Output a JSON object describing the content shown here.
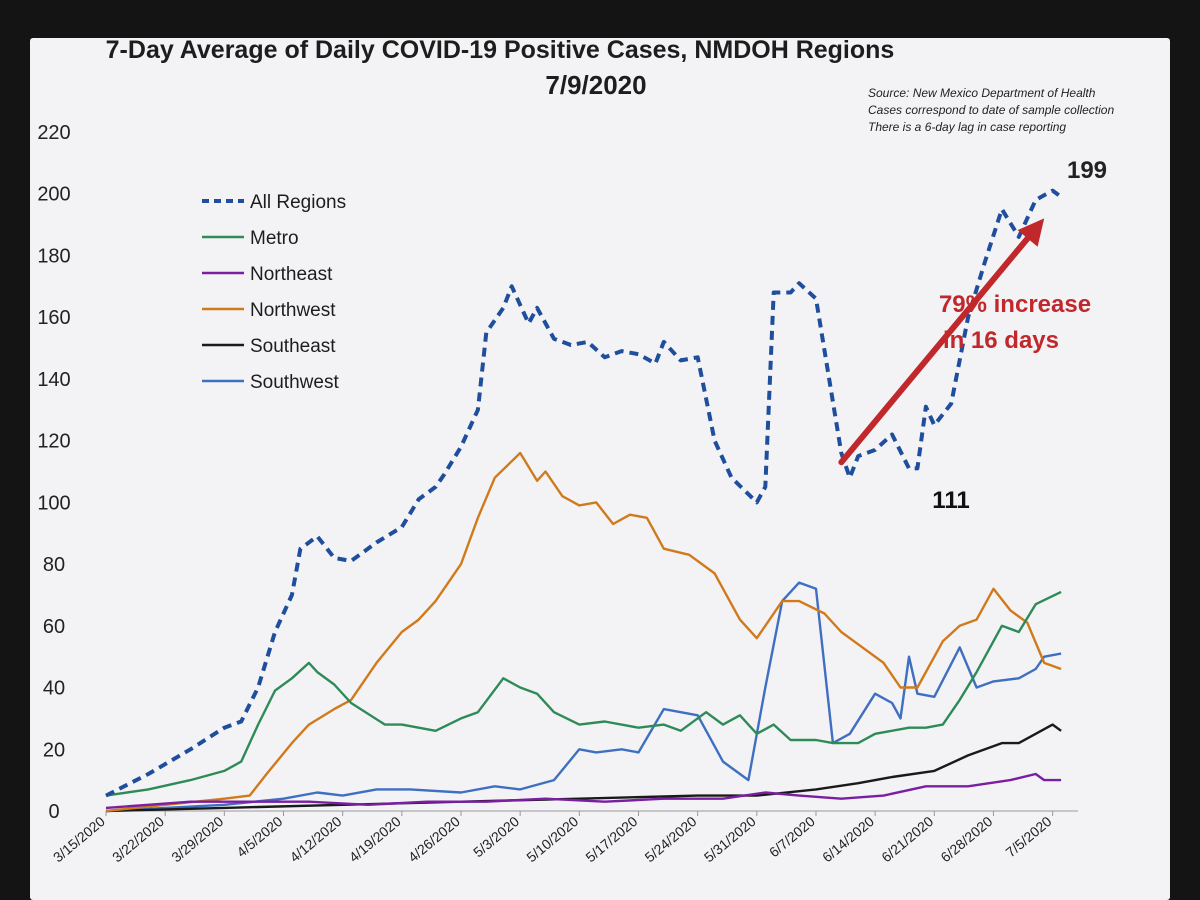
{
  "chart_data": {
    "type": "line",
    "title": "7-Day Average of Daily COVID-19 Positive Cases, NMDOH Regions",
    "subtitle": "7/9/2020",
    "source_notes": [
      "Source: New Mexico Department of Health",
      "Cases correspond to date of sample collection",
      "There is a 6-day lag in case reporting"
    ],
    "xlabel": "",
    "ylabel": "",
    "ylim": [
      0,
      220
    ],
    "yticks": [
      0,
      20,
      40,
      60,
      80,
      100,
      120,
      140,
      160,
      180,
      200,
      220
    ],
    "xlim": [
      "3/15/2020",
      "7/8/2020"
    ],
    "xtick_labels": [
      "3/15/2020",
      "3/22/2020",
      "3/29/2020",
      "4/5/2020",
      "4/12/2020",
      "4/19/2020",
      "4/26/2020",
      "5/3/2020",
      "5/10/2020",
      "5/17/2020",
      "5/24/2020",
      "5/31/2020",
      "6/7/2020",
      "6/14/2020",
      "6/21/2020",
      "6/28/2020",
      "7/5/2020"
    ],
    "legend_position": "upper-left",
    "grid": false,
    "series": [
      {
        "name": "All Regions",
        "color": "#1f4e9c",
        "dash": true,
        "points": [
          [
            "3/15/2020",
            5
          ],
          [
            "3/20/2020",
            12
          ],
          [
            "3/25/2020",
            20
          ],
          [
            "3/29/2020",
            27
          ],
          [
            "3/31/2020",
            29
          ],
          [
            "4/2/2020",
            40
          ],
          [
            "4/4/2020",
            58
          ],
          [
            "4/6/2020",
            70
          ],
          [
            "4/7/2020",
            85
          ],
          [
            "4/9/2020",
            89
          ],
          [
            "4/11/2020",
            82
          ],
          [
            "4/13/2020",
            81
          ],
          [
            "4/16/2020",
            87
          ],
          [
            "4/19/2020",
            92
          ],
          [
            "4/21/2020",
            101
          ],
          [
            "4/23/2020",
            105
          ],
          [
            "4/24/2020",
            109
          ],
          [
            "4/26/2020",
            118
          ],
          [
            "4/28/2020",
            130
          ],
          [
            "4/29/2020",
            155
          ],
          [
            "5/1/2020",
            163
          ],
          [
            "5/2/2020",
            170
          ],
          [
            "5/4/2020",
            158
          ],
          [
            "5/5/2020",
            163
          ],
          [
            "5/7/2020",
            153
          ],
          [
            "5/9/2020",
            151
          ],
          [
            "5/11/2020",
            152
          ],
          [
            "5/13/2020",
            147
          ],
          [
            "5/15/2020",
            149
          ],
          [
            "5/17/2020",
            148
          ],
          [
            "5/19/2020",
            145
          ],
          [
            "5/20/2020",
            152
          ],
          [
            "5/22/2020",
            146
          ],
          [
            "5/24/2020",
            147
          ],
          [
            "5/26/2020",
            120
          ],
          [
            "5/28/2020",
            108
          ],
          [
            "5/31/2020",
            100
          ],
          [
            "6/1/2020",
            105
          ],
          [
            "6/2/2020",
            168
          ],
          [
            "6/4/2020",
            168
          ],
          [
            "6/5/2020",
            171
          ],
          [
            "6/7/2020",
            166
          ],
          [
            "6/10/2020",
            116
          ],
          [
            "6/11/2020",
            108
          ],
          [
            "6/12/2020",
            115
          ],
          [
            "6/14/2020",
            117
          ],
          [
            "6/16/2020",
            122
          ],
          [
            "6/18/2020",
            111
          ],
          [
            "6/19/2020",
            111
          ],
          [
            "6/20/2020",
            131
          ],
          [
            "6/21/2020",
            125
          ],
          [
            "6/23/2020",
            132
          ],
          [
            "6/25/2020",
            160
          ],
          [
            "6/27/2020",
            178
          ],
          [
            "6/29/2020",
            195
          ],
          [
            "7/1/2020",
            186
          ],
          [
            "7/3/2020",
            198
          ],
          [
            "7/5/2020",
            201
          ],
          [
            "7/6/2020",
            199
          ]
        ]
      },
      {
        "name": "Metro",
        "color": "#2e8b57",
        "dash": false,
        "points": [
          [
            "3/15/2020",
            5
          ],
          [
            "3/20/2020",
            7
          ],
          [
            "3/25/2020",
            10
          ],
          [
            "3/29/2020",
            13
          ],
          [
            "3/31/2020",
            16
          ],
          [
            "4/2/2020",
            28
          ],
          [
            "4/4/2020",
            39
          ],
          [
            "4/6/2020",
            43
          ],
          [
            "4/8/2020",
            48
          ],
          [
            "4/9/2020",
            45
          ],
          [
            "4/11/2020",
            41
          ],
          [
            "4/13/2020",
            35
          ],
          [
            "4/17/2020",
            28
          ],
          [
            "4/19/2020",
            28
          ],
          [
            "4/23/2020",
            26
          ],
          [
            "4/26/2020",
            30
          ],
          [
            "4/28/2020",
            32
          ],
          [
            "5/1/2020",
            43
          ],
          [
            "5/3/2020",
            40
          ],
          [
            "5/5/2020",
            38
          ],
          [
            "5/7/2020",
            32
          ],
          [
            "5/10/2020",
            28
          ],
          [
            "5/13/2020",
            29
          ],
          [
            "5/17/2020",
            27
          ],
          [
            "5/20/2020",
            28
          ],
          [
            "5/22/2020",
            26
          ],
          [
            "5/25/2020",
            32
          ],
          [
            "5/27/2020",
            28
          ],
          [
            "5/29/2020",
            31
          ],
          [
            "5/31/2020",
            25
          ],
          [
            "6/2/2020",
            28
          ],
          [
            "6/4/2020",
            23
          ],
          [
            "6/7/2020",
            23
          ],
          [
            "6/9/2020",
            22
          ],
          [
            "6/12/2020",
            22
          ],
          [
            "6/14/2020",
            25
          ],
          [
            "6/18/2020",
            27
          ],
          [
            "6/20/2020",
            27
          ],
          [
            "6/22/2020",
            28
          ],
          [
            "6/24/2020",
            36
          ],
          [
            "6/26/2020",
            45
          ],
          [
            "6/29/2020",
            60
          ],
          [
            "7/1/2020",
            58
          ],
          [
            "7/3/2020",
            67
          ],
          [
            "7/6/2020",
            71
          ]
        ]
      },
      {
        "name": "Northeast",
        "color": "#7a1fa2",
        "dash": false,
        "points": [
          [
            "3/15/2020",
            1
          ],
          [
            "3/20/2020",
            2
          ],
          [
            "3/25/2020",
            3
          ],
          [
            "4/1/2020",
            3
          ],
          [
            "4/8/2020",
            3
          ],
          [
            "4/15/2020",
            2
          ],
          [
            "4/22/2020",
            3
          ],
          [
            "4/29/2020",
            3
          ],
          [
            "5/6/2020",
            4
          ],
          [
            "5/13/2020",
            3
          ],
          [
            "5/20/2020",
            4
          ],
          [
            "5/27/2020",
            4
          ],
          [
            "6/1/2020",
            6
          ],
          [
            "6/5/2020",
            5
          ],
          [
            "6/10/2020",
            4
          ],
          [
            "6/15/2020",
            5
          ],
          [
            "6/20/2020",
            8
          ],
          [
            "6/25/2020",
            8
          ],
          [
            "6/30/2020",
            10
          ],
          [
            "7/3/2020",
            12
          ],
          [
            "7/4/2020",
            10
          ],
          [
            "7/6/2020",
            10
          ]
        ]
      },
      {
        "name": "Northwest",
        "color": "#d07a1c",
        "dash": false,
        "points": [
          [
            "3/15/2020",
            0
          ],
          [
            "3/22/2020",
            2
          ],
          [
            "3/29/2020",
            4
          ],
          [
            "4/1/2020",
            5
          ],
          [
            "4/3/2020",
            12
          ],
          [
            "4/6/2020",
            22
          ],
          [
            "4/8/2020",
            28
          ],
          [
            "4/11/2020",
            33
          ],
          [
            "4/13/2020",
            36
          ],
          [
            "4/16/2020",
            48
          ],
          [
            "4/19/2020",
            58
          ],
          [
            "4/21/2020",
            62
          ],
          [
            "4/23/2020",
            68
          ],
          [
            "4/26/2020",
            80
          ],
          [
            "4/28/2020",
            95
          ],
          [
            "4/30/2020",
            108
          ],
          [
            "5/3/2020",
            116
          ],
          [
            "5/5/2020",
            107
          ],
          [
            "5/6/2020",
            110
          ],
          [
            "5/8/2020",
            102
          ],
          [
            "5/10/2020",
            99
          ],
          [
            "5/12/2020",
            100
          ],
          [
            "5/14/2020",
            93
          ],
          [
            "5/16/2020",
            96
          ],
          [
            "5/18/2020",
            95
          ],
          [
            "5/20/2020",
            85
          ],
          [
            "5/23/2020",
            83
          ],
          [
            "5/26/2020",
            77
          ],
          [
            "5/29/2020",
            62
          ],
          [
            "5/31/2020",
            56
          ],
          [
            "6/3/2020",
            68
          ],
          [
            "6/5/2020",
            68
          ],
          [
            "6/8/2020",
            64
          ],
          [
            "6/10/2020",
            58
          ],
          [
            "6/12/2020",
            54
          ],
          [
            "6/15/2020",
            48
          ],
          [
            "6/17/2020",
            40
          ],
          [
            "6/19/2020",
            40
          ],
          [
            "6/22/2020",
            55
          ],
          [
            "6/24/2020",
            60
          ],
          [
            "6/26/2020",
            62
          ],
          [
            "6/28/2020",
            72
          ],
          [
            "6/30/2020",
            65
          ],
          [
            "7/2/2020",
            61
          ],
          [
            "7/4/2020",
            48
          ],
          [
            "7/6/2020",
            46
          ]
        ]
      },
      {
        "name": "Southeast",
        "color": "#1a1a1a",
        "dash": false,
        "points": [
          [
            "3/15/2020",
            0
          ],
          [
            "3/29/2020",
            1
          ],
          [
            "4/12/2020",
            2
          ],
          [
            "4/26/2020",
            3
          ],
          [
            "5/10/2020",
            4
          ],
          [
            "5/24/2020",
            5
          ],
          [
            "5/31/2020",
            5
          ],
          [
            "6/7/2020",
            7
          ],
          [
            "6/12/2020",
            9
          ],
          [
            "6/16/2020",
            11
          ],
          [
            "6/21/2020",
            13
          ],
          [
            "6/25/2020",
            18
          ],
          [
            "6/29/2020",
            22
          ],
          [
            "7/1/2020",
            22
          ],
          [
            "7/3/2020",
            25
          ],
          [
            "7/5/2020",
            28
          ],
          [
            "7/6/2020",
            26
          ]
        ]
      },
      {
        "name": "Southwest",
        "color": "#3f6fc0",
        "dash": false,
        "points": [
          [
            "3/15/2020",
            0
          ],
          [
            "3/22/2020",
            1
          ],
          [
            "3/29/2020",
            2
          ],
          [
            "4/5/2020",
            4
          ],
          [
            "4/9/2020",
            6
          ],
          [
            "4/12/2020",
            5
          ],
          [
            "4/16/2020",
            7
          ],
          [
            "4/20/2020",
            7
          ],
          [
            "4/26/2020",
            6
          ],
          [
            "4/30/2020",
            8
          ],
          [
            "5/3/2020",
            7
          ],
          [
            "5/7/2020",
            10
          ],
          [
            "5/10/2020",
            20
          ],
          [
            "5/12/2020",
            19
          ],
          [
            "5/15/2020",
            20
          ],
          [
            "5/17/2020",
            19
          ],
          [
            "5/20/2020",
            33
          ],
          [
            "5/24/2020",
            31
          ],
          [
            "5/27/2020",
            16
          ],
          [
            "5/30/2020",
            10
          ],
          [
            "6/1/2020",
            40
          ],
          [
            "6/3/2020",
            68
          ],
          [
            "6/5/2020",
            74
          ],
          [
            "6/7/2020",
            72
          ],
          [
            "6/9/2020",
            22
          ],
          [
            "6/11/2020",
            25
          ],
          [
            "6/14/2020",
            38
          ],
          [
            "6/16/2020",
            35
          ],
          [
            "6/17/2020",
            30
          ],
          [
            "6/18/2020",
            50
          ],
          [
            "6/19/2020",
            38
          ],
          [
            "6/21/2020",
            37
          ],
          [
            "6/24/2020",
            53
          ],
          [
            "6/26/2020",
            40
          ],
          [
            "6/28/2020",
            42
          ],
          [
            "7/1/2020",
            43
          ],
          [
            "7/3/2020",
            46
          ],
          [
            "7/4/2020",
            50
          ],
          [
            "7/6/2020",
            51
          ]
        ]
      }
    ],
    "annotations": {
      "low_label": "111",
      "high_label": "199",
      "arrow_text_line1": "79% increase",
      "arrow_text_line2": "in 16 days",
      "arrow_from": [
        "6/10/2020",
        113
      ],
      "arrow_to": [
        "7/4/2020",
        192
      ],
      "arrow_color": "#c0282c"
    }
  }
}
